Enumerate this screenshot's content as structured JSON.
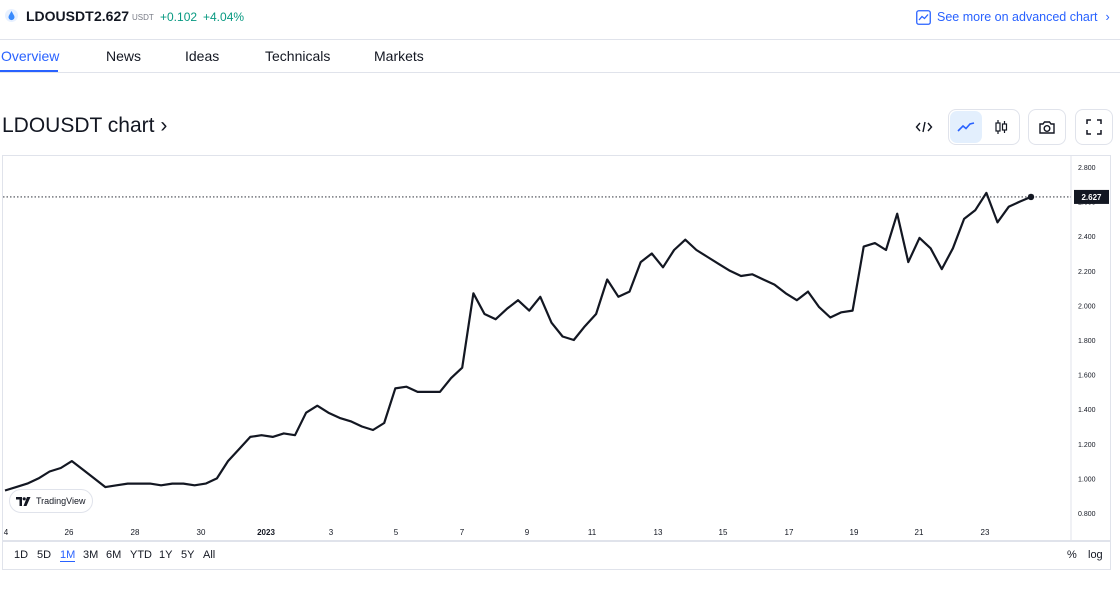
{
  "header": {
    "symbol": "LDOUSDT",
    "price": "2.627",
    "currency": "USDT",
    "change": "+0.102",
    "change_percent": "+4.04%",
    "advanced_link": "See more on advanced chart",
    "arrow": "›"
  },
  "tabs": [
    "Overview",
    "News",
    "Ideas",
    "Technicals",
    "Markets"
  ],
  "chart_title": "LDOUSDT chart ›",
  "toolbar": {
    "icons": [
      "embed-code-icon",
      "line-chart-icon",
      "candles-icon",
      "camera-icon",
      "fullscreen-icon"
    ]
  },
  "colors": {
    "accent": "#2962ff",
    "positive": "#089981",
    "line": "#131722"
  },
  "chart_data": {
    "type": "line",
    "title": "",
    "x_ticks": [
      "4",
      "26",
      "28",
      "30",
      "2023",
      "3",
      "5",
      "7",
      "9",
      "11",
      "13",
      "15",
      "17",
      "19",
      "21",
      "23"
    ],
    "y_ticks": [
      "2.800",
      "2.600",
      "2.400",
      "2.200",
      "2.000",
      "1.800",
      "1.600",
      "1.400",
      "1.200",
      "1.000",
      "0.800"
    ],
    "ylim": [
      0.8,
      2.8
    ],
    "last_value_label": "2.627",
    "series": [
      {
        "values": [
          0.93,
          0.95,
          0.97,
          1.0,
          1.04,
          1.06,
          1.1,
          1.05,
          1.0,
          0.95,
          0.96,
          0.97,
          0.97,
          0.97,
          0.96,
          0.97,
          0.97,
          0.96,
          0.97,
          1.0,
          1.1,
          1.17,
          1.24,
          1.25,
          1.24,
          1.26,
          1.25,
          1.38,
          1.42,
          1.38,
          1.35,
          1.33,
          1.3,
          1.28,
          1.32,
          1.52,
          1.53,
          1.5,
          1.5,
          1.5,
          1.58,
          1.64,
          2.07,
          1.95,
          1.92,
          1.98,
          2.03,
          1.97,
          2.05,
          1.9,
          1.82,
          1.8,
          1.88,
          1.95,
          2.15,
          2.05,
          2.08,
          2.25,
          2.3,
          2.22,
          2.32,
          2.38,
          2.32,
          2.28,
          2.24,
          2.2,
          2.17,
          2.18,
          2.15,
          2.12,
          2.07,
          2.03,
          2.08,
          1.99,
          1.93,
          1.96,
          1.97,
          2.34,
          2.36,
          2.32,
          2.53,
          2.25,
          2.39,
          2.33,
          2.21,
          2.33,
          2.5,
          2.55,
          2.65,
          2.48,
          2.57,
          2.6,
          2.627
        ]
      }
    ]
  }
}
